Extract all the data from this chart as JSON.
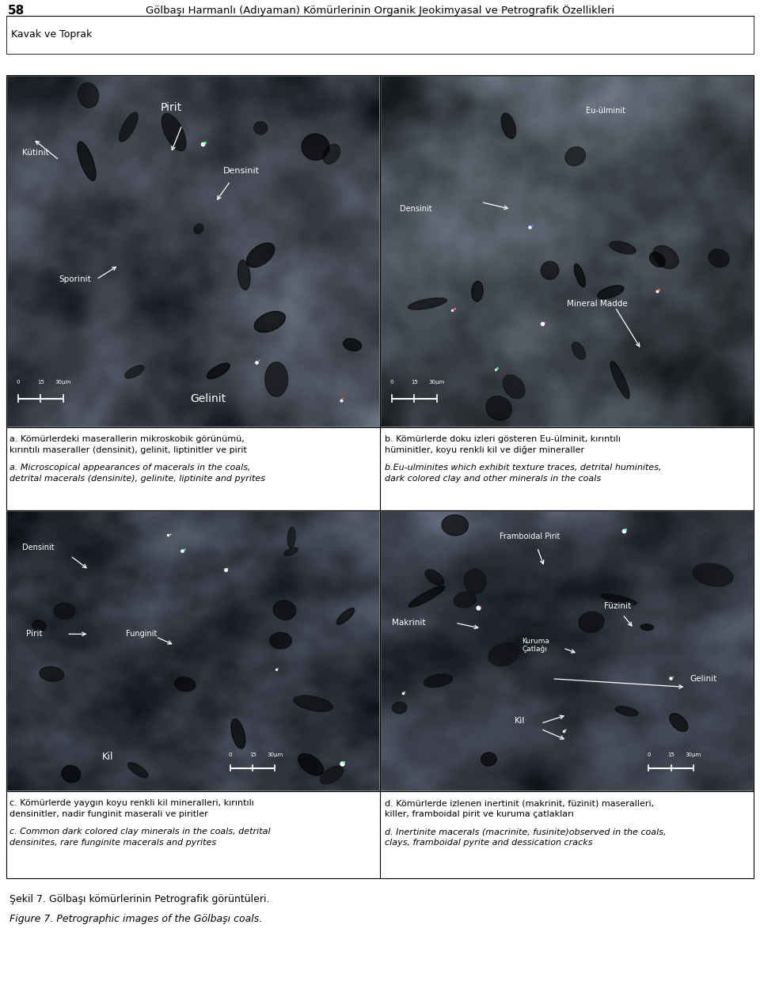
{
  "page_width": 9.6,
  "page_height": 12.55,
  "background_color": "#ffffff",
  "header_number": "58",
  "header_title": "Gölbaşı Harmanlı (Adıyaman) Kömürlerinin Organik Jeokimyasal ve Petrografik Özellikleri",
  "subheader": "Kavak ve Toprak",
  "footer_line1": "Şekil 7. Gölbaşı kömürlerinin Petrografik görüntüleri.",
  "footer_line2": "Figure 7. Petrographic images of the Gölbaşı coals.",
  "caption_a_turkish_1": "a. Kömürlerdeki maserallerin mikroskobik görünümü,",
  "caption_a_turkish_2": "kırıntılı maseraller (densinit), gelinit, liptinitler ve pirit",
  "caption_a_english_1": "a. Microscopical appearances of macerals in the coals,",
  "caption_a_english_2": "detrital macerals (densinite), gelinite, liptinite and pyrites",
  "caption_b_turkish_1": "b. Kömürlerde doku izleri gösteren Eu-ülminit, kırıntılı",
  "caption_b_turkish_2": "hüminitler, koyu renkli kil ve diğer mineraller",
  "caption_b_english_1": "b.Eu-ulminites which exhibit texture traces, detrital huminites,",
  "caption_b_english_2": "dark colored clay and other minerals in the coals",
  "caption_c_turkish_1": "c. Kömürlerde yaygın koyu renkli kil mineralleri, kırıntılı",
  "caption_c_turkish_2": "densinitler, nadir funginit maserali ve piritler",
  "caption_c_english_1": "c. Common dark colored clay minerals in the coals, detrital",
  "caption_c_english_2": "densinites, rare funginite macerals and pyrites",
  "caption_d_turkish_1": "d. Kömürlerde izlenen inertinit (makrinit, füzinit) maseralleri,",
  "caption_d_turkish_2": "killer, framboidal pirit ve kuruma çatlakları",
  "caption_d_english_1": "d. Inertinite macerals (macrinite, fusinite)observed in the coals,",
  "caption_d_english_2": "clays, framboidal pyrite and dessication cracks"
}
